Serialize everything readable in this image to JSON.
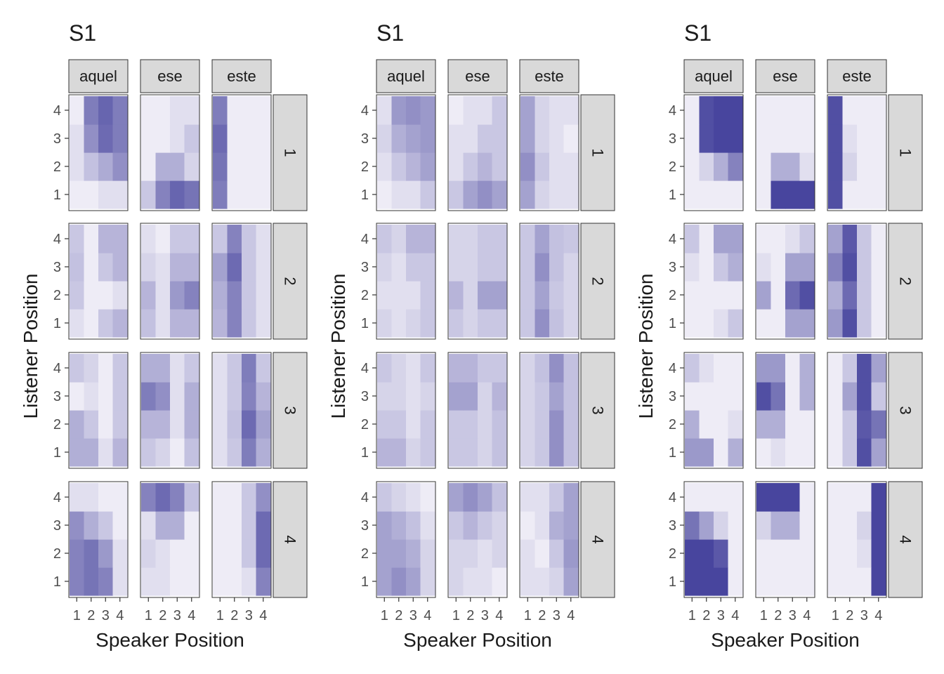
{
  "figure": {
    "panel_count": 3
  },
  "colors": {
    "fill_low": "#f7f5fb",
    "fill_high": "#3f3c99",
    "strip_bg": "#d9d9d9",
    "strip_border": "#333333",
    "text": "#1a1a1a",
    "tick_text": "#4d4d4d"
  },
  "chart_data": [
    {
      "type": "heatmap",
      "title": "S1",
      "xlabel": "Speaker Position",
      "ylabel": "Listener Position",
      "x_ticks": [
        "1",
        "2",
        "3",
        "4"
      ],
      "y_ticks": [
        "1",
        "2",
        "3",
        "4"
      ],
      "col_facets": [
        "aquel",
        "ese",
        "este"
      ],
      "row_facets": [
        "1",
        "2",
        "3",
        "4"
      ],
      "value_range": [
        0,
        1
      ],
      "cells": [
        [
          [
            [
              0.05,
              0.05,
              0.12,
              0.12
            ],
            [
              0.12,
              0.28,
              0.4,
              0.55
            ],
            [
              0.12,
              0.55,
              0.75,
              0.65
            ],
            [
              0.05,
              0.65,
              0.78,
              0.65
            ]
          ],
          [
            [
              0.25,
              0.62,
              0.78,
              0.7
            ],
            [
              0.05,
              0.38,
              0.38,
              0.18
            ],
            [
              0.05,
              0.05,
              0.12,
              0.25
            ],
            [
              0.05,
              0.05,
              0.12,
              0.12
            ]
          ],
          [
            [
              0.65,
              0.05,
              0.05,
              0.05
            ],
            [
              0.7,
              0.05,
              0.05,
              0.05
            ],
            [
              0.75,
              0.05,
              0.05,
              0.05
            ],
            [
              0.65,
              0.05,
              0.05,
              0.05
            ]
          ]
        ],
        [
          [
            [
              0.12,
              0.05,
              0.25,
              0.35
            ],
            [
              0.25,
              0.05,
              0.05,
              0.12
            ],
            [
              0.28,
              0.05,
              0.25,
              0.35
            ],
            [
              0.25,
              0.05,
              0.35,
              0.35
            ]
          ],
          [
            [
              0.28,
              0.12,
              0.35,
              0.35
            ],
            [
              0.35,
              0.12,
              0.5,
              0.62
            ],
            [
              0.18,
              0.12,
              0.35,
              0.35
            ],
            [
              0.12,
              0.05,
              0.25,
              0.25
            ]
          ],
          [
            [
              0.35,
              0.62,
              0.25,
              0.12
            ],
            [
              0.38,
              0.62,
              0.25,
              0.12
            ],
            [
              0.45,
              0.75,
              0.25,
              0.12
            ],
            [
              0.25,
              0.62,
              0.25,
              0.12
            ]
          ]
        ],
        [
          [
            [
              0.38,
              0.38,
              0.12,
              0.35
            ],
            [
              0.38,
              0.25,
              0.05,
              0.25
            ],
            [
              0.05,
              0.12,
              0.05,
              0.25
            ],
            [
              0.25,
              0.18,
              0.05,
              0.25
            ]
          ],
          [
            [
              0.25,
              0.18,
              0.05,
              0.28
            ],
            [
              0.35,
              0.35,
              0.12,
              0.38
            ],
            [
              0.65,
              0.55,
              0.12,
              0.38
            ],
            [
              0.38,
              0.38,
              0.12,
              0.25
            ]
          ],
          [
            [
              0.12,
              0.25,
              0.65,
              0.38
            ],
            [
              0.12,
              0.28,
              0.75,
              0.45
            ],
            [
              0.12,
              0.25,
              0.62,
              0.35
            ],
            [
              0.12,
              0.25,
              0.65,
              0.25
            ]
          ]
        ],
        [
          [
            [
              0.62,
              0.7,
              0.62,
              0.12
            ],
            [
              0.62,
              0.7,
              0.5,
              0.12
            ],
            [
              0.55,
              0.38,
              0.25,
              0.05
            ],
            [
              0.12,
              0.12,
              0.05,
              0.05
            ]
          ],
          [
            [
              0.12,
              0.12,
              0.05,
              0.05
            ],
            [
              0.18,
              0.12,
              0.05,
              0.05
            ],
            [
              0.12,
              0.38,
              0.38,
              0.05
            ],
            [
              0.62,
              0.75,
              0.62,
              0.28
            ]
          ],
          [
            [
              0.05,
              0.05,
              0.12,
              0.62
            ],
            [
              0.05,
              0.05,
              0.25,
              0.75
            ],
            [
              0.05,
              0.05,
              0.25,
              0.75
            ],
            [
              0.05,
              0.05,
              0.25,
              0.55
            ]
          ]
        ]
      ]
    },
    {
      "type": "heatmap",
      "title": "S1",
      "xlabel": "Speaker Position",
      "ylabel": "Listener Position",
      "x_ticks": [
        "1",
        "2",
        "3",
        "4"
      ],
      "y_ticks": [
        "1",
        "2",
        "3",
        "4"
      ],
      "col_facets": [
        "aquel",
        "ese",
        "este"
      ],
      "row_facets": [
        "1",
        "2",
        "3",
        "4"
      ],
      "value_range": [
        0,
        1
      ],
      "cells": [
        [
          [
            [
              0.05,
              0.12,
              0.12,
              0.25
            ],
            [
              0.12,
              0.25,
              0.35,
              0.45
            ],
            [
              0.18,
              0.38,
              0.45,
              0.5
            ],
            [
              0.12,
              0.5,
              0.55,
              0.5
            ]
          ],
          [
            [
              0.25,
              0.45,
              0.55,
              0.45
            ],
            [
              0.12,
              0.25,
              0.35,
              0.25
            ],
            [
              0.12,
              0.12,
              0.25,
              0.25
            ],
            [
              0.05,
              0.12,
              0.12,
              0.25
            ]
          ],
          [
            [
              0.45,
              0.18,
              0.12,
              0.12
            ],
            [
              0.55,
              0.25,
              0.12,
              0.12
            ],
            [
              0.45,
              0.18,
              0.12,
              0.05
            ],
            [
              0.45,
              0.18,
              0.12,
              0.12
            ]
          ]
        ],
        [
          [
            [
              0.18,
              0.12,
              0.18,
              0.25
            ],
            [
              0.12,
              0.12,
              0.12,
              0.25
            ],
            [
              0.18,
              0.12,
              0.25,
              0.25
            ],
            [
              0.25,
              0.18,
              0.35,
              0.35
            ]
          ],
          [
            [
              0.25,
              0.18,
              0.25,
              0.25
            ],
            [
              0.35,
              0.18,
              0.45,
              0.45
            ],
            [
              0.18,
              0.18,
              0.25,
              0.25
            ],
            [
              0.18,
              0.18,
              0.25,
              0.25
            ]
          ],
          [
            [
              0.25,
              0.55,
              0.28,
              0.18
            ],
            [
              0.25,
              0.45,
              0.25,
              0.18
            ],
            [
              0.25,
              0.55,
              0.28,
              0.18
            ],
            [
              0.25,
              0.45,
              0.28,
              0.25
            ]
          ]
        ],
        [
          [
            [
              0.35,
              0.35,
              0.18,
              0.25
            ],
            [
              0.25,
              0.25,
              0.12,
              0.25
            ],
            [
              0.18,
              0.18,
              0.12,
              0.18
            ],
            [
              0.25,
              0.18,
              0.12,
              0.25
            ]
          ],
          [
            [
              0.25,
              0.25,
              0.18,
              0.28
            ],
            [
              0.25,
              0.25,
              0.18,
              0.28
            ],
            [
              0.45,
              0.45,
              0.18,
              0.35
            ],
            [
              0.35,
              0.35,
              0.25,
              0.25
            ]
          ],
          [
            [
              0.18,
              0.25,
              0.55,
              0.28
            ],
            [
              0.18,
              0.25,
              0.55,
              0.28
            ],
            [
              0.18,
              0.25,
              0.45,
              0.28
            ],
            [
              0.18,
              0.28,
              0.55,
              0.28
            ]
          ]
        ],
        [
          [
            [
              0.45,
              0.55,
              0.45,
              0.18
            ],
            [
              0.45,
              0.45,
              0.38,
              0.18
            ],
            [
              0.45,
              0.38,
              0.28,
              0.12
            ],
            [
              0.25,
              0.18,
              0.12,
              0.05
            ]
          ],
          [
            [
              0.18,
              0.12,
              0.12,
              0.05
            ],
            [
              0.18,
              0.18,
              0.12,
              0.18
            ],
            [
              0.25,
              0.35,
              0.25,
              0.18
            ],
            [
              0.45,
              0.55,
              0.45,
              0.28
            ]
          ],
          [
            [
              0.12,
              0.12,
              0.18,
              0.45
            ],
            [
              0.12,
              0.05,
              0.25,
              0.5
            ],
            [
              0.05,
              0.12,
              0.38,
              0.45
            ],
            [
              0.12,
              0.12,
              0.25,
              0.45
            ]
          ]
        ]
      ]
    },
    {
      "type": "heatmap",
      "title": "S1",
      "xlabel": "Speaker Position",
      "ylabel": "Listener Position",
      "x_ticks": [
        "1",
        "2",
        "3",
        "4"
      ],
      "y_ticks": [
        "1",
        "2",
        "3",
        "4"
      ],
      "col_facets": [
        "aquel",
        "ese",
        "este"
      ],
      "row_facets": [
        "1",
        "2",
        "3",
        "4"
      ],
      "value_range": [
        0,
        1
      ],
      "cells": [
        [
          [
            [
              0.05,
              0.05,
              0.05,
              0.05
            ],
            [
              0.05,
              0.18,
              0.38,
              0.62
            ],
            [
              0.05,
              0.9,
              0.95,
              0.95
            ],
            [
              0.05,
              0.9,
              0.95,
              0.95
            ]
          ],
          [
            [
              0.05,
              0.95,
              0.95,
              0.95
            ],
            [
              0.05,
              0.38,
              0.38,
              0.12
            ],
            [
              0.05,
              0.05,
              0.05,
              0.05
            ],
            [
              0.05,
              0.05,
              0.05,
              0.05
            ]
          ],
          [
            [
              0.9,
              0.05,
              0.05,
              0.05
            ],
            [
              0.9,
              0.18,
              0.05,
              0.05
            ],
            [
              0.9,
              0.12,
              0.05,
              0.05
            ],
            [
              0.9,
              0.05,
              0.05,
              0.05
            ]
          ]
        ],
        [
          [
            [
              0.05,
              0.05,
              0.12,
              0.25
            ],
            [
              0.05,
              0.05,
              0.05,
              0.05
            ],
            [
              0.12,
              0.05,
              0.25,
              0.38
            ],
            [
              0.25,
              0.05,
              0.45,
              0.45
            ]
          ],
          [
            [
              0.05,
              0.05,
              0.45,
              0.45
            ],
            [
              0.45,
              0.05,
              0.75,
              0.9
            ],
            [
              0.12,
              0.05,
              0.45,
              0.45
            ],
            [
              0.05,
              0.05,
              0.12,
              0.25
            ]
          ],
          [
            [
              0.5,
              0.9,
              0.25,
              0.05
            ],
            [
              0.38,
              0.75,
              0.25,
              0.05
            ],
            [
              0.62,
              0.9,
              0.25,
              0.05
            ],
            [
              0.45,
              0.85,
              0.25,
              0.05
            ]
          ]
        ],
        [
          [
            [
              0.5,
              0.5,
              0.05,
              0.38
            ],
            [
              0.38,
              0.05,
              0.05,
              0.12
            ],
            [
              0.05,
              0.05,
              0.05,
              0.05
            ],
            [
              0.25,
              0.12,
              0.05,
              0.05
            ]
          ],
          [
            [
              0.05,
              0.12,
              0.05,
              0.05
            ],
            [
              0.38,
              0.38,
              0.05,
              0.05
            ],
            [
              0.9,
              0.7,
              0.05,
              0.38
            ],
            [
              0.5,
              0.5,
              0.05,
              0.38
            ]
          ],
          [
            [
              0.05,
              0.25,
              0.9,
              0.45
            ],
            [
              0.05,
              0.25,
              0.85,
              0.7
            ],
            [
              0.05,
              0.45,
              0.9,
              0.25
            ],
            [
              0.05,
              0.25,
              0.9,
              0.45
            ]
          ]
        ],
        [
          [
            [
              0.95,
              0.95,
              0.95,
              0.05
            ],
            [
              0.95,
              0.95,
              0.85,
              0.05
            ],
            [
              0.7,
              0.45,
              0.18,
              0.05
            ],
            [
              0.05,
              0.05,
              0.05,
              0.05
            ]
          ],
          [
            [
              0.05,
              0.05,
              0.05,
              0.05
            ],
            [
              0.05,
              0.05,
              0.05,
              0.05
            ],
            [
              0.18,
              0.38,
              0.38,
              0.05
            ],
            [
              0.95,
              0.95,
              0.95,
              0.05
            ]
          ],
          [
            [
              0.05,
              0.05,
              0.05,
              0.95
            ],
            [
              0.05,
              0.05,
              0.12,
              0.95
            ],
            [
              0.05,
              0.05,
              0.18,
              0.95
            ],
            [
              0.05,
              0.05,
              0.05,
              0.95
            ]
          ]
        ]
      ]
    }
  ]
}
